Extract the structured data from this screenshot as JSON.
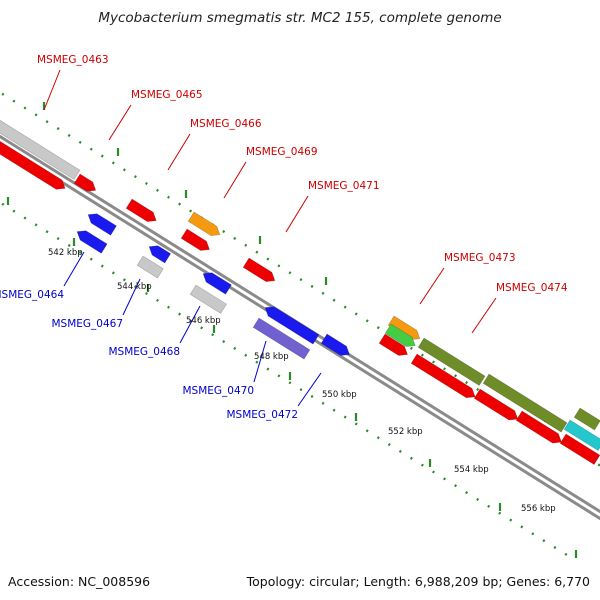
{
  "title": "Mycobacterium smegmatis str. MC2 155, complete genome",
  "footer": {
    "accession": "Accession: NC_008596",
    "summary": "Topology: circular; Length: 6,988,209 bp; Genes: 6,770"
  },
  "colors": {
    "label_forward": "#cc0000",
    "label_reverse": "#0000cc",
    "gene_red": "#ee0000",
    "gene_blue": "#1a1aee",
    "gene_grey": "#c8c8c8",
    "gene_orange": "#f59a10",
    "gene_green": "#44cc44",
    "gene_olive": "#6e8c28",
    "gene_purple": "#7060d0",
    "gene_cyan": "#22c8cc",
    "backbone": "#888888",
    "ruler_dots": "#2a8a2a"
  },
  "genome": {
    "accession": "NC_008596",
    "topology": "circular",
    "length_bp": 6988209,
    "gene_count": 6770
  },
  "ticks": [
    {
      "label": "542 kbp"
    },
    {
      "label": "544 kbp"
    },
    {
      "label": "546 kbp"
    },
    {
      "label": "548 kbp"
    },
    {
      "label": "550 kbp"
    },
    {
      "label": "552 kbp"
    },
    {
      "label": "554 kbp"
    },
    {
      "label": "556 kbp"
    }
  ],
  "gene_labels": [
    {
      "name": "MSMEG_0463",
      "strand": "forward"
    },
    {
      "name": "MSMEG_0465",
      "strand": "forward"
    },
    {
      "name": "MSMEG_0466",
      "strand": "forward"
    },
    {
      "name": "MSMEG_0469",
      "strand": "forward"
    },
    {
      "name": "MSMEG_0471",
      "strand": "forward"
    },
    {
      "name": "MSMEG_0473",
      "strand": "forward"
    },
    {
      "name": "MSMEG_0474",
      "strand": "forward"
    },
    {
      "name": "MSMEG_0464",
      "strand": "reverse"
    },
    {
      "name": "MSMEG_0467",
      "strand": "reverse"
    },
    {
      "name": "MSMEG_0468",
      "strand": "reverse"
    },
    {
      "name": "MSMEG_0470",
      "strand": "reverse"
    },
    {
      "name": "MSMEG_0472",
      "strand": "reverse"
    }
  ]
}
